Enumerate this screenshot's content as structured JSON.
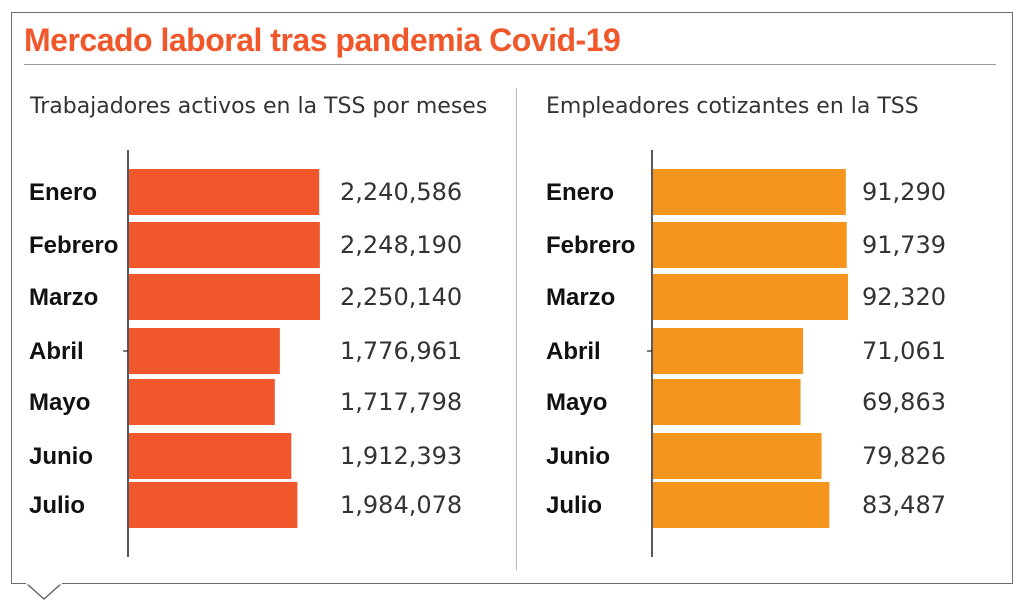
{
  "header": {
    "title": "Mercado laboral tras pandemia Covid-19"
  },
  "colors": {
    "title": "#f0572a",
    "left_bar": "#f0572a",
    "right_bar": "#f5951e"
  },
  "chart_data": [
    {
      "type": "bar",
      "orientation": "horizontal",
      "title": "Trabajadores activos en la TSS por meses",
      "categories": [
        "Enero",
        "Febrero",
        "Marzo",
        "Abril",
        "Mayo",
        "Junio",
        "Julio"
      ],
      "values": [
        2240586,
        2248190,
        2250140,
        1776961,
        1717798,
        1912393,
        1984078
      ],
      "value_labels": [
        "2,240,586",
        "2,248,190",
        "2,250,140",
        "1,776,961",
        "1,717,798",
        "1,912,393",
        "1,984,078"
      ],
      "xlim": [
        0,
        2250140
      ]
    },
    {
      "type": "bar",
      "orientation": "horizontal",
      "title": "Empleadores cotizantes en la TSS",
      "categories": [
        "Enero",
        "Febrero",
        "Marzo",
        "Abril",
        "Mayo",
        "Junio",
        "Julio"
      ],
      "values": [
        91290,
        91739,
        92320,
        71061,
        69863,
        79826,
        83487
      ],
      "value_labels": [
        "91,290",
        "91,739",
        "92,320",
        "71,061",
        "69,863",
        "79,826",
        "83,487"
      ],
      "xlim": [
        0,
        92320
      ]
    }
  ]
}
